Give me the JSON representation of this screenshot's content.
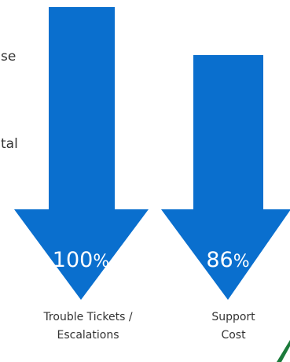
{
  "clipped_text": [
    "se",
    "tal"
  ],
  "arrows": [
    {
      "value": "100",
      "unit": "%",
      "label_line1": "Trouble Tickets /",
      "label_line2": "Escalations"
    },
    {
      "value": "86",
      "unit": "%",
      "label_line1": "Support",
      "label_line2": "Cost"
    }
  ],
  "colors": {
    "arrow_blue": "#0a6fce",
    "logo_green": "#1b7a3a",
    "text": "#333333"
  }
}
